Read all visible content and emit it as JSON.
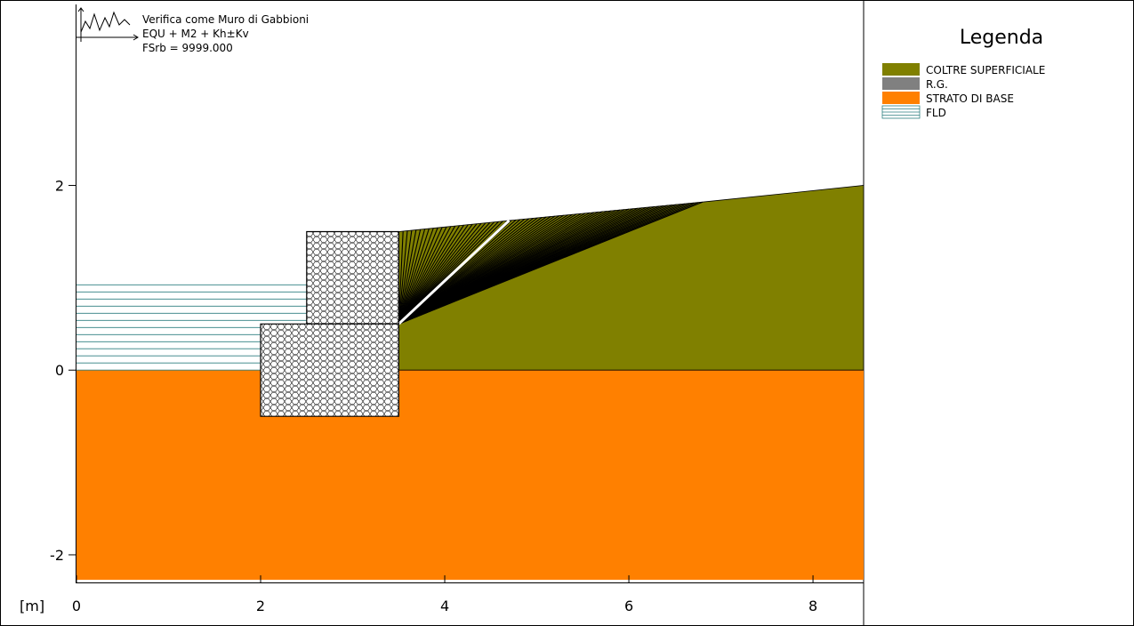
{
  "header": {
    "title": "Verifica come Muro di Gabbioni",
    "combination": "EQU + M2 + Kh±Kv",
    "safety_factor": "FSrb = 9999.000"
  },
  "legend": {
    "title": "Legenda",
    "items": [
      {
        "label": "COLTRE SUPERFICIALE",
        "color": "#808000",
        "pattern": "solid"
      },
      {
        "label": "R.G.",
        "color": "#808080",
        "pattern": "solid"
      },
      {
        "label": "STRATO DI BASE",
        "color": "#ff8000",
        "pattern": "solid"
      },
      {
        "label": "FLD",
        "color": "#2e7f80",
        "pattern": "hlines"
      }
    ]
  },
  "axes": {
    "unit_label": "[m]",
    "x_ticks": [
      "0",
      "2",
      "4",
      "6",
      "8"
    ],
    "y_ticks": [
      "2",
      "0",
      "-2"
    ]
  },
  "colors": {
    "coltre": "#808000",
    "base": "#ff8000",
    "fld": "#2e7f80",
    "gabion_fill": "#ffffff",
    "surfaces": "#000000",
    "critical_surface": "#ffffff"
  },
  "model": {
    "x_range": [
      0,
      8.55
    ],
    "y_range": [
      -2.27,
      3.95
    ],
    "base_layer": [
      [
        0,
        0
      ],
      [
        8.55,
        0
      ],
      [
        8.55,
        -2.27
      ],
      [
        0,
        -2.27
      ]
    ],
    "coltre_layer": [
      [
        3.5,
        0
      ],
      [
        3.5,
        1.5
      ],
      [
        4.0,
        1.55
      ],
      [
        4.7,
        1.62
      ],
      [
        6.8,
        1.82
      ],
      [
        8.55,
        2.0
      ],
      [
        8.55,
        0
      ]
    ],
    "gabion_upper": [
      [
        2.5,
        0.5
      ],
      [
        3.5,
        0.5
      ],
      [
        3.5,
        1.5
      ],
      [
        2.5,
        1.5
      ]
    ],
    "gabion_lower": [
      [
        2.0,
        -0.5
      ],
      [
        3.5,
        -0.5
      ],
      [
        3.5,
        0.5
      ],
      [
        2.0,
        0.5
      ]
    ],
    "water": {
      "x_from": 0,
      "x_to": 2.5,
      "y_from": 0,
      "y_to": 1.0,
      "line_spacing": 0.077
    },
    "slip_fan": {
      "origin": [
        3.5,
        0.5
      ],
      "x_from": 3.5,
      "x_to": 6.8,
      "count": 70
    },
    "critical_surface": [
      [
        3.5,
        0.5
      ],
      [
        4.7,
        1.62
      ]
    ]
  }
}
